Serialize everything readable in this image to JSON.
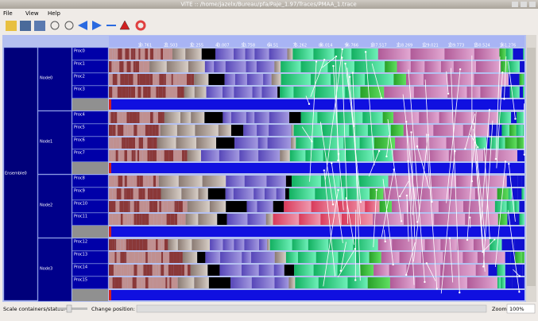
{
  "window": {
    "title": "ViTE :: /home/jazelx/Bureau/pfa/Paje_1.97/Traces/PMAA_1.trace"
  },
  "menu": [
    "File",
    "View",
    "Help"
  ],
  "ruler": {
    "ticks": [
      "10.761",
      "21.503",
      "32.255",
      "43.007",
      "53.758",
      "64.51",
      "75.262",
      "86.014",
      "96.766",
      "107.517",
      "118.269",
      "129.021",
      "139.773",
      "150.524",
      "161.276"
    ]
  },
  "containers": {
    "root": "Ensemble0",
    "nodes": [
      {
        "label": "Node0",
        "procs": [
          "Proc0",
          "Proc1",
          "Proc2",
          "Proc3"
        ]
      },
      {
        "label": "Node1",
        "procs": [
          "Proc4",
          "Proc5",
          "Proc6",
          "Proc7"
        ]
      },
      {
        "label": "Node2",
        "procs": [
          "Proc8",
          "Proc9",
          "Proc10",
          "Proc11"
        ]
      },
      {
        "label": "Node3",
        "procs": [
          "Proc12",
          "Proc13",
          "Proc14",
          "Proc15"
        ]
      }
    ]
  },
  "statusbar": {
    "scale_label": "Scale containers/states:",
    "position_label": "Change position:",
    "zoom_label": "Zoom:",
    "zoom_value": "100%"
  }
}
